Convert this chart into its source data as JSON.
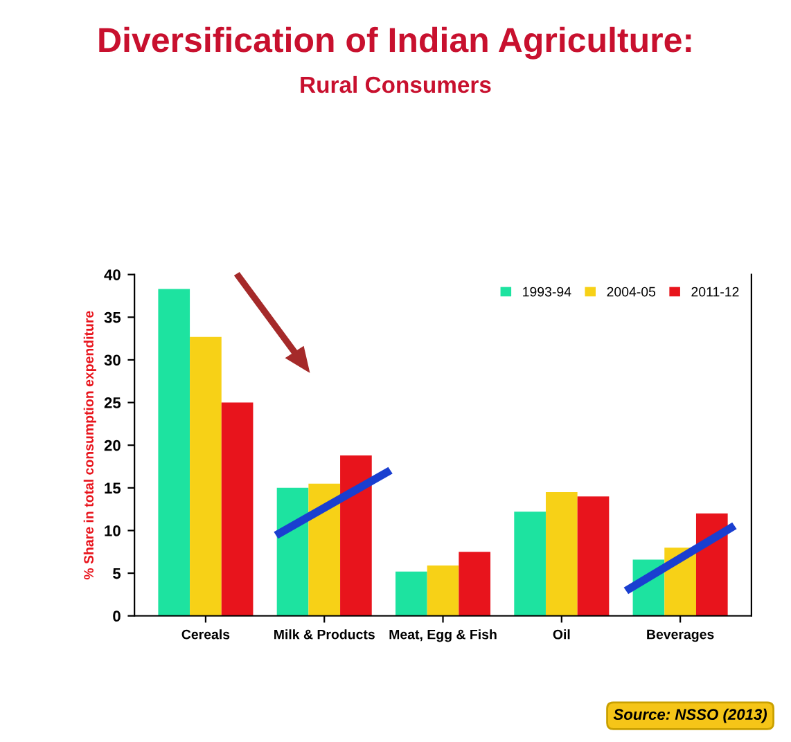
{
  "chart_data": {
    "type": "bar",
    "title": "Diversification of Indian Agriculture:",
    "subtitle": "Rural Consumers",
    "ylabel": "% Share in total consumption expenditure",
    "categories": [
      "Cereals",
      "Milk & Products",
      "Meat, Egg & Fish",
      "Oil",
      "Beverages"
    ],
    "series": [
      {
        "name": "1993-94",
        "color": "#1de3a0",
        "values": [
          38.3,
          15,
          5.2,
          12.2,
          6.6
        ]
      },
      {
        "name": "2004-05",
        "color": "#f7d117",
        "values": [
          32.7,
          15.5,
          5.9,
          14.5,
          8
        ]
      },
      {
        "name": "2011-12",
        "color": "#e8141c",
        "values": [
          25,
          18.8,
          7.5,
          14,
          12
        ]
      }
    ],
    "ylim": [
      0,
      40
    ],
    "yticks": [
      0,
      5,
      10,
      15,
      20,
      25,
      30,
      35,
      40
    ],
    "grid": false,
    "legend": "top right",
    "annotations": [
      "Source: NSSO (2013)"
    ]
  }
}
